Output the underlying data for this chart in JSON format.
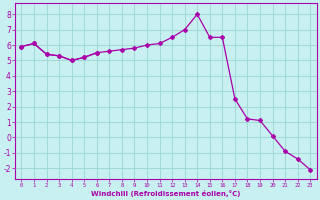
{
  "xlabel": "Windchill (Refroidissement éolien,°C)",
  "background_color": "#c8f0f0",
  "grid_color": "#a0d8d8",
  "line_color": "#aa00aa",
  "xlim": [
    -0.5,
    23.5
  ],
  "ylim": [
    -2.7,
    8.7
  ],
  "xticks": [
    0,
    1,
    2,
    3,
    4,
    5,
    6,
    7,
    8,
    9,
    10,
    11,
    12,
    13,
    14,
    15,
    16,
    17,
    18,
    19,
    20,
    21,
    22,
    23
  ],
  "yticks": [
    -2,
    -1,
    0,
    1,
    2,
    3,
    4,
    5,
    6,
    7,
    8
  ],
  "series1_x": [
    0,
    1,
    2,
    3,
    4,
    5,
    6
  ],
  "series1_y": [
    5.9,
    6.1,
    5.4,
    5.3,
    5.0,
    5.2,
    5.5
  ],
  "series2_x": [
    0,
    1,
    2,
    3,
    4,
    5,
    6,
    7,
    8,
    9,
    10,
    11,
    12,
    13,
    14,
    15,
    16,
    17,
    18,
    19,
    20,
    21,
    22,
    23
  ],
  "series2_y": [
    5.9,
    6.1,
    5.4,
    5.3,
    5.0,
    5.2,
    5.5,
    5.6,
    5.7,
    5.8,
    6.0,
    6.1,
    6.5,
    7.0,
    8.0,
    6.5,
    6.5,
    2.5,
    1.2,
    1.1,
    0.1,
    -0.9,
    -1.4,
    -2.1
  ]
}
